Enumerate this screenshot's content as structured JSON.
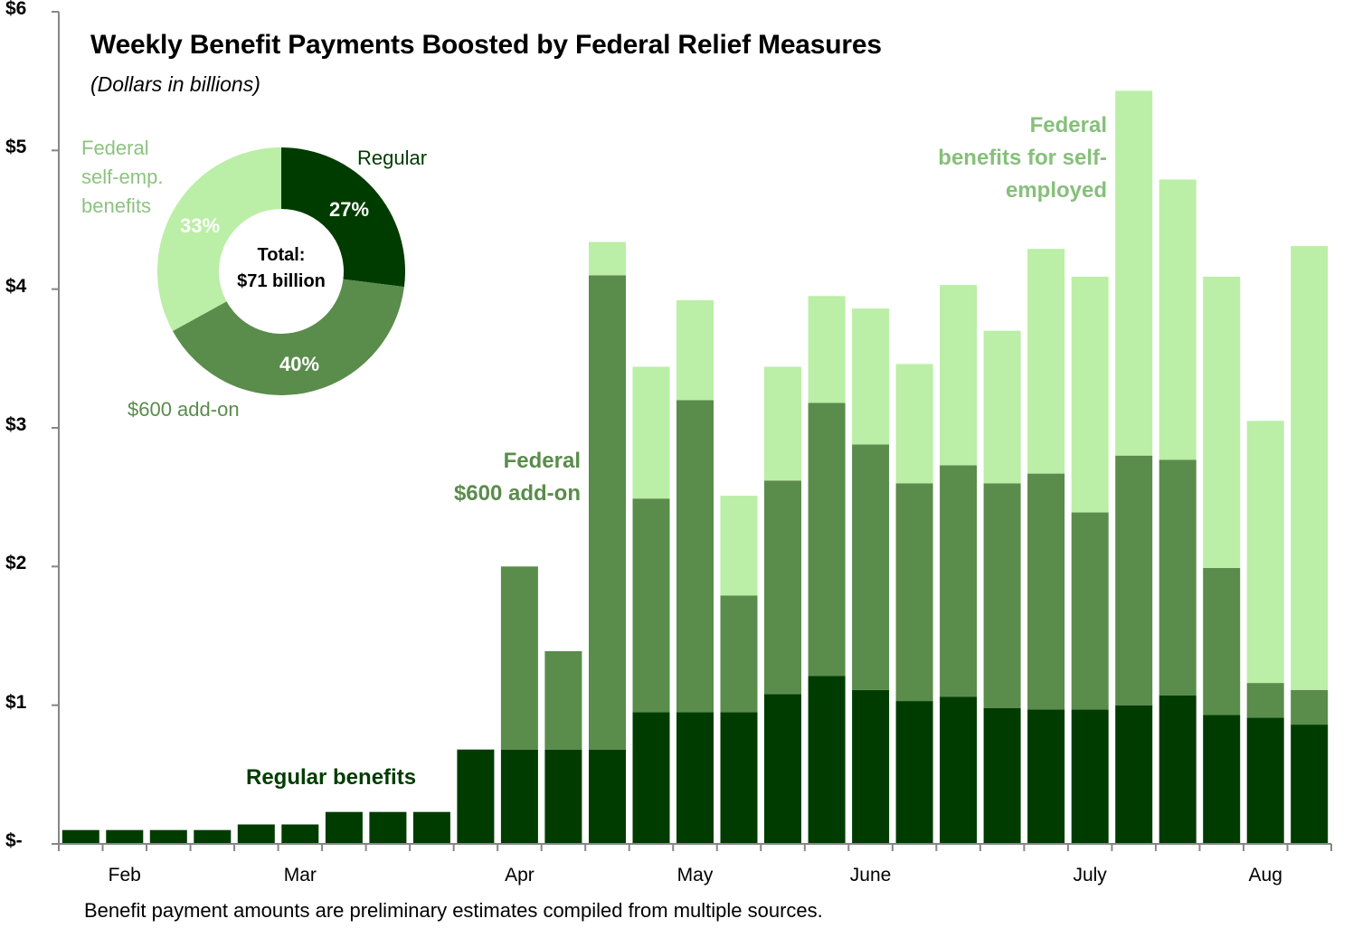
{
  "chart_data": [
    {
      "type": "bar",
      "stacked": true,
      "title": "Weekly Benefit Payments Boosted by Federal Relief Measures",
      "subtitle": "(Dollars in billions)",
      "xlabel": "",
      "ylabel": "",
      "ylim": [
        0,
        6
      ],
      "yticks": [
        0,
        1,
        2,
        3,
        4,
        5,
        6
      ],
      "ytick_labels": [
        "$-",
        "$1",
        "$2",
        "$3",
        "$4",
        "$5",
        "$6"
      ],
      "x_month_labels": [
        {
          "label": "Feb",
          "after_bar": 1.5
        },
        {
          "label": "Mar",
          "after_bar": 5.5
        },
        {
          "label": "Apr",
          "after_bar": 10.5
        },
        {
          "label": "May",
          "after_bar": 14.5
        },
        {
          "label": "June",
          "after_bar": 18.5
        },
        {
          "label": "July",
          "after_bar": 23.5
        },
        {
          "label": "Aug",
          "after_bar": 27.5
        }
      ],
      "n_weeks": 29,
      "grid": false,
      "legend": "none (inline annotations)",
      "series": [
        {
          "name": "Regular benefits",
          "color": "#003c00",
          "values": [
            0.1,
            0.1,
            0.1,
            0.1,
            0.14,
            0.14,
            0.23,
            0.23,
            0.23,
            0.68,
            0.68,
            0.68,
            0.68,
            0.95,
            0.95,
            0.95,
            1.08,
            1.21,
            1.11,
            1.03,
            1.06,
            0.98,
            0.97,
            0.97,
            1.0,
            1.07,
            0.93,
            0.91,
            0.86
          ]
        },
        {
          "name": "Federal $600 add-on",
          "color": "#5a8c4b",
          "values": [
            0,
            0,
            0,
            0,
            0,
            0,
            0,
            0,
            0,
            0,
            1.32,
            0.71,
            3.42,
            1.54,
            2.25,
            0.84,
            1.54,
            1.97,
            1.77,
            1.57,
            1.67,
            1.62,
            1.7,
            1.42,
            1.8,
            1.7,
            1.06,
            0.25,
            0.25
          ]
        },
        {
          "name": "Federal benefits for self-employed",
          "color": "#bbeea6",
          "values": [
            0,
            0,
            0,
            0,
            0,
            0,
            0,
            0,
            0,
            0,
            0,
            0,
            0.24,
            0.95,
            0.72,
            0.72,
            0.82,
            0.77,
            0.98,
            0.86,
            1.3,
            1.1,
            1.62,
            1.7,
            2.63,
            2.02,
            2.1,
            1.89,
            3.2
          ]
        }
      ],
      "annotations": [
        {
          "text": "Regular benefits",
          "series": "Regular benefits"
        },
        {
          "text": [
            "Federal",
            "$600 add-on"
          ],
          "series": "Federal $600 add-on"
        },
        {
          "text": [
            "Federal",
            "benefits for self-",
            "employed"
          ],
          "series": "Federal benefits for self-employed"
        }
      ],
      "footnote": "Benefit payment amounts are preliminary estimates compiled from multiple sources."
    },
    {
      "type": "pie",
      "donut": true,
      "center_label": [
        "Total:",
        "$71 billion"
      ],
      "slices": [
        {
          "name": "Regular",
          "value": 27,
          "label": "27%",
          "color": "#003c00"
        },
        {
          "name": "$600 add-on",
          "value": 40,
          "label": "40%",
          "color": "#5a8c4b"
        },
        {
          "name": "Federal self-emp. benefits",
          "value": 33,
          "label": "33%",
          "color": "#bbeea6"
        }
      ]
    }
  ],
  "labels": {
    "title": "Weekly Benefit Payments Boosted by Federal Relief Measures",
    "subtitle": "(Dollars in billions)",
    "footer": "Benefit payment amounts are preliminary estimates compiled from multiple sources.",
    "ann_regular": "Regular benefits",
    "ann_addon_1": "Federal",
    "ann_addon_2": "$600 add-on",
    "ann_self_1": "Federal",
    "ann_self_2": "benefits for self-",
    "ann_self_3": "employed",
    "donut_regular": "Regular",
    "donut_self_1": "Federal",
    "donut_self_2": "self-emp.",
    "donut_self_3": "benefits",
    "donut_addon": "$600 add-on",
    "donut_total_1": "Total:",
    "donut_total_2": "$71 billion",
    "pct_regular": "27%",
    "pct_addon": "40%",
    "pct_self": "33%"
  }
}
